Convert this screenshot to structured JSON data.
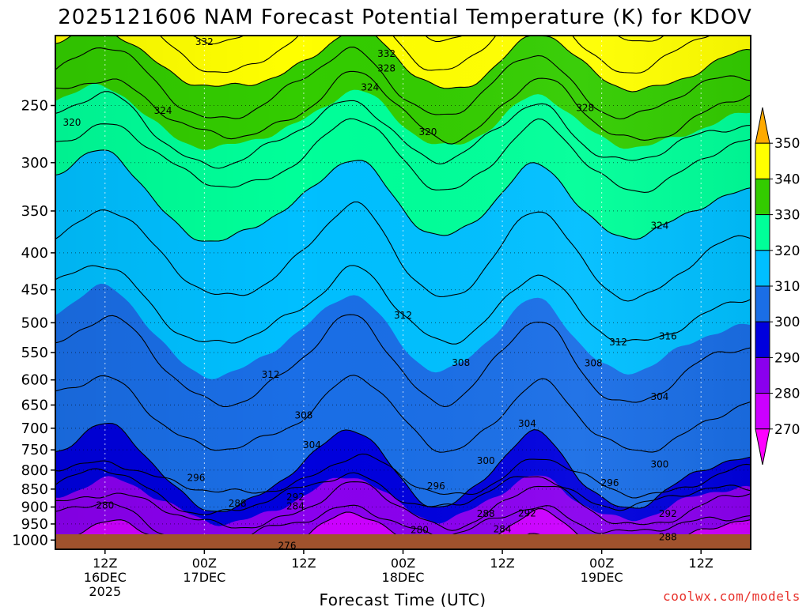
{
  "chart_data": {
    "type": "heatmap",
    "title": "2025121606 NAM Forecast Potential Temperature (K) for KDOV",
    "xlabel": "Forecast Time (UTC)",
    "ylabel": "",
    "y_scale": "log",
    "ylim": [
      1030,
      200
    ],
    "y_ticks": [
      250,
      300,
      350,
      400,
      450,
      500,
      550,
      600,
      650,
      700,
      750,
      800,
      850,
      900,
      950,
      1000
    ],
    "x_hours_range": [
      0,
      84
    ],
    "x_ticks": [
      {
        "hour": 6,
        "line1": "12Z",
        "line2": "16DEC",
        "line3": "2025"
      },
      {
        "hour": 18,
        "line1": "00Z",
        "line2": "17DEC",
        "line3": ""
      },
      {
        "hour": 30,
        "line1": "12Z",
        "line2": "",
        "line3": ""
      },
      {
        "hour": 42,
        "line1": "00Z",
        "line2": "18DEC",
        "line3": ""
      },
      {
        "hour": 54,
        "line1": "12Z",
        "line2": "",
        "line3": ""
      },
      {
        "hour": 66,
        "line1": "00Z",
        "line2": "19DEC",
        "line3": ""
      },
      {
        "hour": 78,
        "line1": "12Z",
        "line2": "",
        "line3": ""
      }
    ],
    "colorbar": {
      "levels": [
        "270",
        "280",
        "290",
        "300",
        "310",
        "320",
        "330",
        "340",
        "350"
      ],
      "bounds": [
        270,
        280,
        290,
        300,
        310,
        320,
        330,
        340,
        350
      ],
      "colors": [
        "#ff00ff",
        "#cc00ff",
        "#8a00ee",
        "#0000dd",
        "#1a6ee6",
        "#00bfff",
        "#00ff99",
        "#33cc00",
        "#ffff00",
        "#ffaa00"
      ]
    },
    "contour_isentropes_K": [
      276,
      280,
      284,
      288,
      292,
      296,
      300,
      304,
      308,
      312,
      316,
      320,
      324,
      328,
      332
    ],
    "contour_labels": [
      {
        "text": "332",
        "hour": 18,
        "p": 204
      },
      {
        "text": "332",
        "hour": 40,
        "p": 212
      },
      {
        "text": "328",
        "hour": 40,
        "p": 222
      },
      {
        "text": "324",
        "hour": 38,
        "p": 236
      },
      {
        "text": "324",
        "hour": 13,
        "p": 254
      },
      {
        "text": "320",
        "hour": 2,
        "p": 264
      },
      {
        "text": "328",
        "hour": 64,
        "p": 252
      },
      {
        "text": "320",
        "hour": 45,
        "p": 272
      },
      {
        "text": "324",
        "hour": 73,
        "p": 367
      },
      {
        "text": "312",
        "hour": 42,
        "p": 488
      },
      {
        "text": "316",
        "hour": 74,
        "p": 522
      },
      {
        "text": "312",
        "hour": 68,
        "p": 532
      },
      {
        "text": "308",
        "hour": 49,
        "p": 568
      },
      {
        "text": "308",
        "hour": 65,
        "p": 569
      },
      {
        "text": "312",
        "hour": 26,
        "p": 590
      },
      {
        "text": "304",
        "hour": 73,
        "p": 633
      },
      {
        "text": "308",
        "hour": 30,
        "p": 672
      },
      {
        "text": "304",
        "hour": 57,
        "p": 690
      },
      {
        "text": "304",
        "hour": 31,
        "p": 738
      },
      {
        "text": "300",
        "hour": 52,
        "p": 777
      },
      {
        "text": "300",
        "hour": 73,
        "p": 785
      },
      {
        "text": "296",
        "hour": 17,
        "p": 820
      },
      {
        "text": "296",
        "hour": 46,
        "p": 842
      },
      {
        "text": "296",
        "hour": 67,
        "p": 833
      },
      {
        "text": "292",
        "hour": 29,
        "p": 872
      },
      {
        "text": "288",
        "hour": 22,
        "p": 890
      },
      {
        "text": "284",
        "hour": 29,
        "p": 898
      },
      {
        "text": "280",
        "hour": 6,
        "p": 895
      },
      {
        "text": "288",
        "hour": 52,
        "p": 920
      },
      {
        "text": "292",
        "hour": 57,
        "p": 918
      },
      {
        "text": "292",
        "hour": 74,
        "p": 920
      },
      {
        "text": "280",
        "hour": 44,
        "p": 968
      },
      {
        "text": "284",
        "hour": 54,
        "p": 966
      },
      {
        "text": "288",
        "hour": 74,
        "p": 990
      },
      {
        "text": "276",
        "hour": 28,
        "p": 1018
      }
    ],
    "grid": true,
    "colorbar_placement": "right"
  },
  "watermark": "coolwx.com/models"
}
